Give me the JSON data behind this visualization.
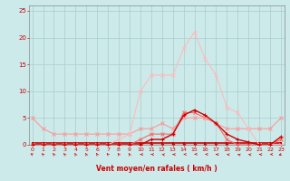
{
  "xlabel": "Vent moyen/en rafales ( km/h )",
  "x": [
    0,
    1,
    2,
    3,
    4,
    5,
    6,
    7,
    8,
    9,
    10,
    11,
    12,
    13,
    14,
    15,
    16,
    17,
    18,
    19,
    20,
    21,
    22,
    23
  ],
  "line_gust_high": [
    0,
    0,
    0,
    0,
    0,
    0,
    0,
    0,
    1,
    2,
    10,
    13,
    13,
    13,
    18,
    21,
    16,
    13,
    7,
    6,
    3,
    0,
    0,
    0
  ],
  "line_avg_high": [
    5,
    3,
    2,
    2,
    2,
    2,
    2,
    2,
    2,
    2,
    3,
    3,
    4,
    3,
    5,
    5,
    5,
    4,
    3,
    3,
    3,
    3,
    3,
    5
  ],
  "line_gust_low": [
    0,
    0,
    0,
    0,
    0,
    0,
    0,
    0,
    0,
    0,
    1,
    2,
    2,
    2,
    6,
    6,
    5,
    4,
    1,
    0,
    0,
    0,
    0,
    1
  ],
  "line_avg_low": [
    0,
    0,
    0,
    0,
    0,
    0,
    0,
    0,
    0,
    0,
    0,
    0,
    0,
    0,
    0,
    0,
    0,
    0,
    0,
    0,
    0,
    0,
    0,
    0
  ],
  "line_mean": [
    0,
    0,
    0,
    0,
    0,
    0,
    0,
    0,
    0,
    0,
    0,
    1,
    1,
    2,
    5.5,
    6.5,
    5.5,
    4,
    2,
    1,
    0.5,
    0,
    0,
    1.5
  ],
  "line_flat": [
    0.3,
    0.3,
    0.3,
    0.3,
    0.3,
    0.3,
    0.3,
    0.3,
    0.3,
    0.3,
    0.3,
    0.3,
    0.3,
    0.3,
    0.3,
    0.3,
    0.3,
    0.3,
    0.3,
    0.3,
    0.3,
    0.3,
    0.3,
    0.3
  ],
  "bg_color": "#cceaea",
  "grid_color": "#aacccc",
  "color_light_pink": "#ffbbbb",
  "color_mid_pink": "#ff9999",
  "color_dark_pink": "#ff6666",
  "color_dark_red": "#cc0000",
  "xlim": [
    0,
    23
  ],
  "ylim": [
    0,
    26
  ],
  "yticks": [
    0,
    5,
    10,
    15,
    20,
    25
  ],
  "xticks": [
    0,
    1,
    2,
    3,
    4,
    5,
    6,
    7,
    8,
    9,
    10,
    11,
    12,
    13,
    14,
    15,
    16,
    17,
    18,
    19,
    20,
    21,
    22,
    23
  ],
  "wind_dirs": [
    225,
    210,
    200,
    200,
    195,
    195,
    200,
    210,
    200,
    195,
    270,
    270,
    260,
    270,
    280,
    290,
    280,
    270,
    260,
    250,
    260,
    270,
    280,
    300
  ]
}
